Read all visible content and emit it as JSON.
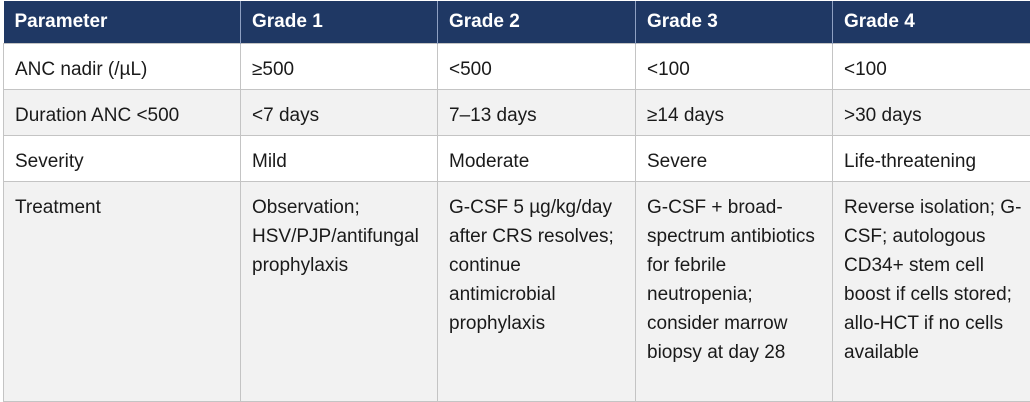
{
  "table": {
    "headers": [
      "Parameter",
      "Grade 1",
      "Grade 2",
      "Grade 3",
      "Grade 4"
    ],
    "rows": [
      [
        "ANC nadir (/µL)",
        "≥500",
        "<500",
        "<100",
        "<100"
      ],
      [
        "Duration ANC <500",
        "<7 days",
        "7–13 days",
        "≥14 days",
        ">30 days"
      ],
      [
        "Severity",
        "Mild",
        "Moderate",
        "Severe",
        "Life-threatening"
      ],
      [
        "Treatment",
        "Observation; HSV/PJP/antifungal prophylaxis",
        "G-CSF 5 µg/kg/day after CRS resolves; continue antimicrobial prophylaxis",
        "G-CSF + broad-spectrum antibiotics for febrile neutropenia; consider marrow biopsy at day 28",
        "Reverse isolation; G-CSF; autologous CD34+ stem cell boost if cells stored; allo-HCT if no cells available"
      ]
    ]
  },
  "colors": {
    "header_bg": "#1f3864",
    "header_text": "#ffffff",
    "row_alt_bg": "#f2f2f2",
    "grid_line": "#c4c4c4"
  }
}
